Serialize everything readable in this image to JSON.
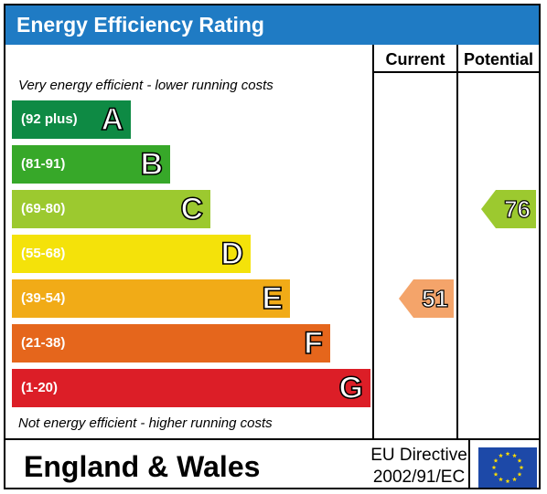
{
  "header": {
    "title": "Energy Efficiency Rating"
  },
  "columns": {
    "current": "Current",
    "potential": "Potential"
  },
  "notes": {
    "top": "Very energy efficient - lower running costs",
    "bottom": "Not energy efficient - higher running costs"
  },
  "colors": {
    "header": "#1f7bc4",
    "A": "#0e8a44",
    "B": "#37a829",
    "C": "#9cc92f",
    "D": "#f4e20a",
    "E": "#f1ab17",
    "F": "#e5661c",
    "G": "#dc1e27"
  },
  "chart_data": {
    "type": "bar",
    "title": "Energy Efficiency Rating",
    "categories": [
      "A",
      "B",
      "C",
      "D",
      "E",
      "F",
      "G"
    ],
    "ranges": [
      "(92 plus)",
      "(81-91)",
      "(69-80)",
      "(55-68)",
      "(39-54)",
      "(21-38)",
      "(1-20)"
    ],
    "current": {
      "value": "51",
      "band": "E",
      "color": "#f4a46a"
    },
    "potential": {
      "value": "76",
      "band": "C",
      "color": "#9cc92f"
    }
  },
  "footer": {
    "region": "England & Wales",
    "directive_line1": "EU Directive",
    "directive_line2": "2002/91/EC",
    "flag_icon": "eu-flag-icon"
  }
}
